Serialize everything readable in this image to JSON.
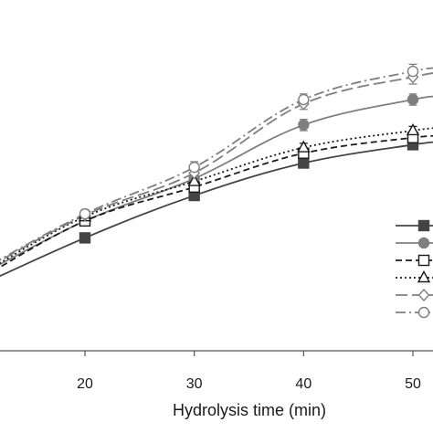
{
  "chart_data": {
    "type": "line",
    "xlabel": "Hydrolysis time (min)",
    "ylabel": "",
    "title": "",
    "xlim": [
      10.5,
      52.5
    ],
    "ylim": [
      0,
      100
    ],
    "x_ticks": [
      20,
      30,
      40,
      50
    ],
    "grid": false,
    "legend_position": "right",
    "series": [
      {
        "marker": "square-filled",
        "line_style": "solid",
        "color": "#444444",
        "x": [
          10,
          20,
          30,
          40,
          50,
          52.5
        ],
        "y": [
          22.5,
          40,
          55,
          66.5,
          73,
          74
        ],
        "error": [
          0,
          1.5,
          1.5,
          1.5,
          0,
          0
        ],
        "marker_points": [
          1,
          2,
          3,
          4
        ]
      },
      {
        "marker": "circle-filled",
        "line_style": "solid",
        "color": "#7f7f7f",
        "x": [
          10,
          20,
          30,
          40,
          50,
          52.5
        ],
        "y": [
          26,
          46,
          61,
          80,
          89,
          90
        ],
        "error": [
          0,
          1.5,
          1.5,
          2,
          2,
          0
        ],
        "marker_points": [
          1,
          2,
          3,
          4,
          5
        ]
      },
      {
        "marker": "square-open",
        "line_style": "dashed",
        "color": "#1a1a1a",
        "x": [
          10,
          20,
          30,
          40,
          50,
          52.5
        ],
        "y": [
          24.5,
          46,
          58,
          70,
          75.5,
          76
        ],
        "error": [
          0,
          1.5,
          1.5,
          1.5,
          1.5,
          0
        ],
        "marker_points": [
          1,
          2,
          3,
          4,
          5
        ]
      },
      {
        "marker": "triangle-open",
        "line_style": "dotted",
        "color": "#1a1a1a",
        "x": [
          10,
          20,
          30,
          40,
          50,
          52.5
        ],
        "y": [
          26,
          47.5,
          60,
          72,
          78,
          79
        ],
        "error": [
          0,
          1.5,
          1.5,
          1.5,
          1.5,
          0
        ],
        "marker_points": [
          1,
          2,
          3,
          4,
          5
        ]
      },
      {
        "marker": "diamond-open",
        "line_style": "long-dash",
        "color": "#7f7f7f",
        "x": [
          10,
          20,
          30,
          40,
          50,
          52.5
        ],
        "y": [
          27,
          48,
          63,
          87.5,
          97,
          98.5
        ],
        "error": [
          0,
          1.5,
          2,
          2,
          2.5,
          0
        ],
        "marker_points": [
          1,
          2,
          3,
          4,
          5
        ]
      },
      {
        "marker": "circle-open",
        "line_style": "dash-dot",
        "color": "#7f7f7f",
        "x": [
          10,
          20,
          30,
          40,
          50,
          52.5
        ],
        "y": [
          27.5,
          48.5,
          65,
          89,
          99,
          100
        ],
        "error": [
          0,
          1.5,
          2,
          2,
          2.5,
          0
        ],
        "marker_points": [
          1,
          2,
          3,
          4,
          5
        ]
      }
    ]
  }
}
